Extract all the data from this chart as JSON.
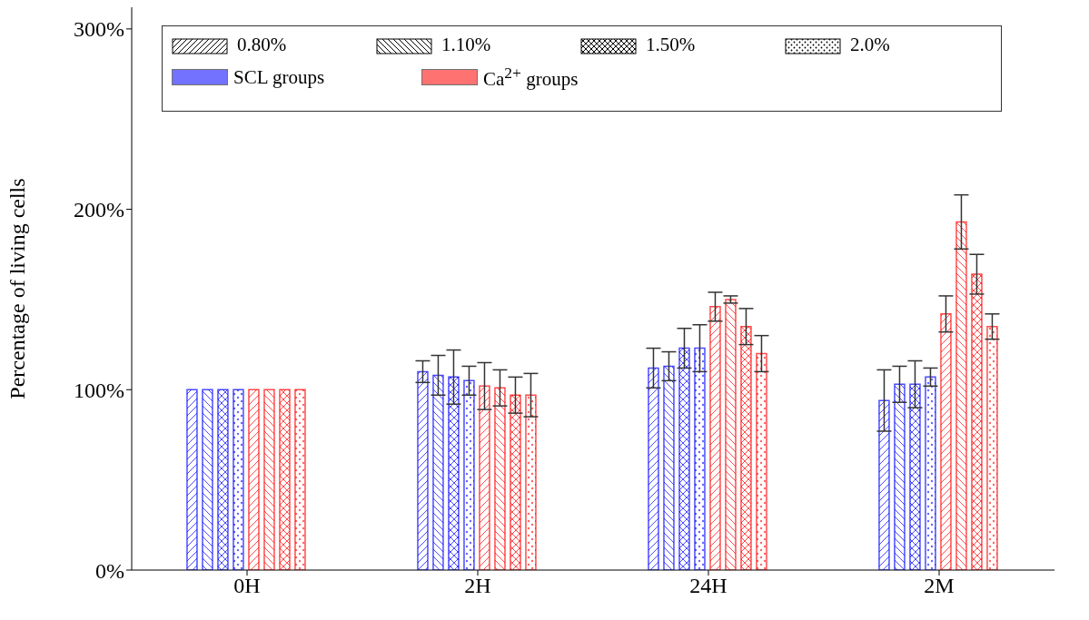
{
  "chart_data": {
    "type": "bar",
    "ylabel": "Percentage of living cells",
    "categories": [
      "0H",
      "2H",
      "24H",
      "2M"
    ],
    "series": [
      {
        "color": "#0000ff",
        "values": [
          100,
          110,
          112,
          94
        ],
        "errors": [
          null,
          6,
          11,
          17
        ]
      },
      {
        "color": "#0000ff",
        "values": [
          100,
          108,
          113,
          103
        ],
        "errors": [
          null,
          11,
          8,
          10
        ]
      },
      {
        "color": "#0000ff",
        "values": [
          100,
          107,
          123,
          103
        ],
        "errors": [
          null,
          15,
          11,
          13
        ]
      },
      {
        "color": "#0000ff",
        "values": [
          100,
          105,
          123,
          107
        ],
        "errors": [
          null,
          8,
          13,
          5
        ]
      },
      {
        "color": "#ff0000",
        "values": [
          100,
          102,
          146,
          142
        ],
        "errors": [
          null,
          13,
          8,
          10
        ]
      },
      {
        "color": "#ff0000",
        "values": [
          100,
          101,
          150,
          193
        ],
        "errors": [
          null,
          10,
          2,
          15
        ]
      },
      {
        "color": "#ff0000",
        "values": [
          100,
          97,
          135,
          164
        ],
        "errors": [
          null,
          10,
          10,
          11
        ]
      },
      {
        "color": "#ff0000",
        "values": [
          100,
          97,
          120,
          135
        ],
        "errors": [
          null,
          12,
          10,
          7
        ]
      }
    ],
    "annotations": [
      "0.80%",
      "1.10%",
      "1.50%",
      "2.0%",
      "SCL groups",
      "Ca$^{2+}$ groups"
    ],
    "ylim": [
      0,
      312
    ],
    "yticks": [
      {
        "value": 0,
        "label": "0%"
      },
      {
        "value": 100,
        "label": "100%"
      },
      {
        "value": 200,
        "label": "200%"
      },
      {
        "value": 300,
        "label": "300%"
      }
    ],
    "grid": false
  }
}
